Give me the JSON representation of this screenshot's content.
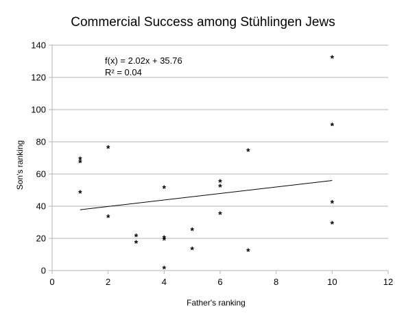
{
  "chart_data": {
    "type": "scatter",
    "title": "Commercial Success among Stühlingen Jews",
    "xlabel": "Father's ranking",
    "ylabel": "Son's ranking",
    "xlim": [
      0,
      12
    ],
    "ylim": [
      0,
      140
    ],
    "x_ticks": [
      "0",
      "2",
      "4",
      "6",
      "8",
      "10",
      "12"
    ],
    "y_ticks": [
      "0",
      "20",
      "40",
      "60",
      "80",
      "100",
      "120",
      "140"
    ],
    "grid": "horizontal",
    "marker": "*",
    "points": [
      {
        "x": 1,
        "y": 69
      },
      {
        "x": 1,
        "y": 67
      },
      {
        "x": 1,
        "y": 48
      },
      {
        "x": 2,
        "y": 76
      },
      {
        "x": 2,
        "y": 33
      },
      {
        "x": 3,
        "y": 21
      },
      {
        "x": 3,
        "y": 17
      },
      {
        "x": 4,
        "y": 51
      },
      {
        "x": 4,
        "y": 20
      },
      {
        "x": 4,
        "y": 19
      },
      {
        "x": 4,
        "y": 1
      },
      {
        "x": 5,
        "y": 25
      },
      {
        "x": 5,
        "y": 13
      },
      {
        "x": 6,
        "y": 55
      },
      {
        "x": 6,
        "y": 52
      },
      {
        "x": 6,
        "y": 35
      },
      {
        "x": 7,
        "y": 74
      },
      {
        "x": 7,
        "y": 12
      },
      {
        "x": 10,
        "y": 132
      },
      {
        "x": 10,
        "y": 90
      },
      {
        "x": 10,
        "y": 42
      },
      {
        "x": 10,
        "y": 29
      }
    ],
    "trendline": {
      "slope": 2.02,
      "intercept": 35.76,
      "x_range": [
        1,
        10
      ],
      "equation": "f(x) = 2.02x + 35.76",
      "r_squared": "R² = 0.04"
    }
  }
}
